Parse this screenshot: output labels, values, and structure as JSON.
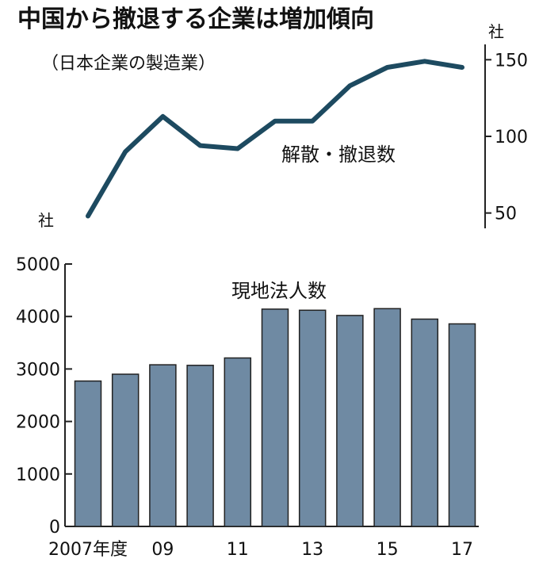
{
  "title": "中国から撤退する企業は増加傾向",
  "subtitle": "（日本企業の製造業）",
  "colors": {
    "line": "#1d4a60",
    "bar_fill": "#6f8aa3",
    "bar_stroke": "#222222",
    "axis": "#222222",
    "text": "#111111"
  },
  "chart_data": [
    {
      "type": "line",
      "series_label": "解散・撤退数",
      "unit": "社",
      "y_axis_side": "right",
      "ylim": [
        40,
        160
      ],
      "yticks": [
        50,
        100,
        150
      ],
      "x": [
        2007,
        2008,
        2009,
        2010,
        2011,
        2012,
        2013,
        2014,
        2015,
        2016,
        2017
      ],
      "values": [
        48,
        90,
        113,
        94,
        92,
        110,
        110,
        133,
        145,
        149,
        145
      ]
    },
    {
      "type": "bar",
      "series_label": "現地法人数",
      "y_axis_side": "left",
      "ylim": [
        0,
        5000
      ],
      "yticks": [
        0,
        1000,
        2000,
        3000,
        4000,
        5000
      ],
      "categories": [
        2007,
        2008,
        2009,
        2010,
        2011,
        2012,
        2013,
        2014,
        2015,
        2016,
        2017
      ],
      "values": [
        2770,
        2900,
        3080,
        3070,
        3210,
        4140,
        4120,
        4020,
        4150,
        3950,
        3860
      ],
      "xtick_labels": [
        {
          "x": 2007,
          "text": "2007年度"
        },
        {
          "x": 2009,
          "text": "09"
        },
        {
          "x": 2011,
          "text": "11"
        },
        {
          "x": 2013,
          "text": "13"
        },
        {
          "x": 2015,
          "text": "15"
        },
        {
          "x": 2017,
          "text": "17"
        }
      ]
    }
  ]
}
